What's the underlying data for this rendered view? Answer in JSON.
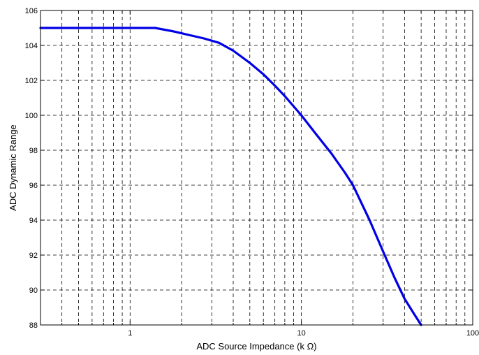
{
  "chart_data": {
    "type": "line",
    "title": "",
    "xlabel": "ADC Source Impedance (k Ω)",
    "ylabel": "ADC Dynamic Range",
    "xscale": "log",
    "xlim": [
      0.3,
      100
    ],
    "ylim": [
      88,
      106
    ],
    "grid": true,
    "legend": "none",
    "x_tick_labels": [
      "1",
      "10",
      "100"
    ],
    "x_tick_values": [
      1,
      10,
      100
    ],
    "y_tick_labels": [
      "88",
      "90",
      "92",
      "94",
      "96",
      "98",
      "100",
      "102",
      "104",
      "106"
    ],
    "y_tick_values": [
      88,
      90,
      92,
      94,
      96,
      98,
      100,
      102,
      104,
      106
    ],
    "series": [
      {
        "color": "#0000e6",
        "x": [
          0.3,
          0.5,
          0.8,
          1.0,
          1.4,
          1.8,
          2.2,
          2.7,
          3.3,
          4.0,
          5.0,
          6.0,
          7.0,
          8.0,
          10.0,
          12.0,
          15.0,
          18.0,
          20.0,
          25.0,
          30.0,
          35.0,
          40.0,
          45.0,
          50.0
        ],
        "y": [
          105.0,
          105.0,
          105.0,
          105.0,
          105.0,
          104.8,
          104.6,
          104.4,
          104.15,
          103.7,
          103.0,
          102.35,
          101.7,
          101.1,
          100.0,
          99.0,
          97.8,
          96.7,
          96.0,
          94.0,
          92.2,
          90.7,
          89.5,
          88.7,
          88.0
        ]
      }
    ]
  }
}
